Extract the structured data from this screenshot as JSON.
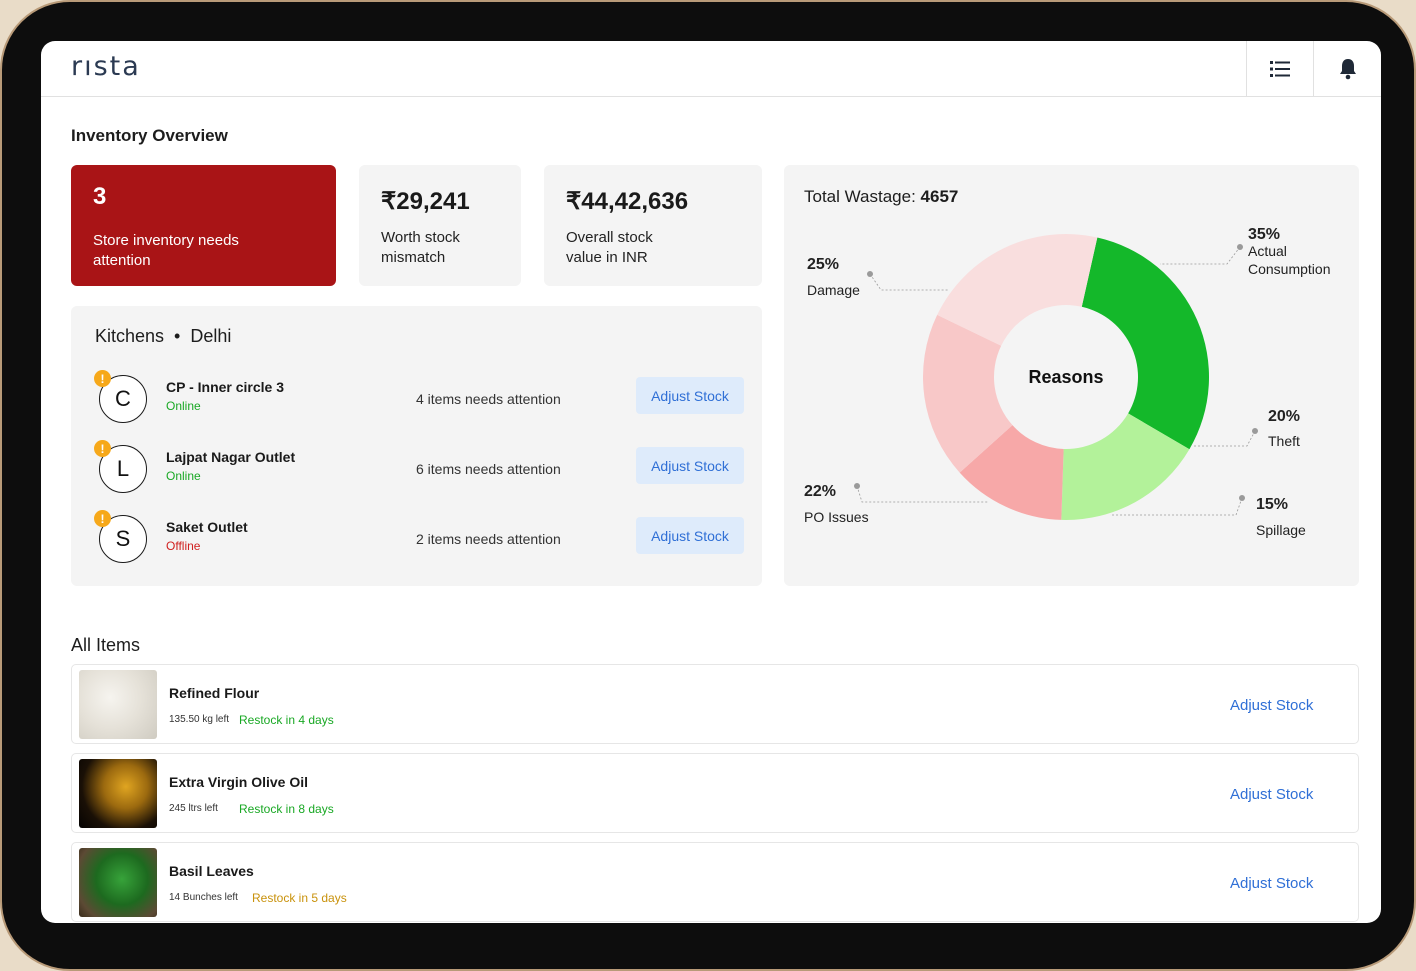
{
  "app": {
    "logo": "rısta"
  },
  "header": {
    "menu_icon": "list-icon",
    "bell_icon": "bell-icon"
  },
  "overview": {
    "title": "Inventory Overview",
    "alert_card": {
      "value": "3",
      "label": "Store inventory needs attention"
    },
    "mismatch_card": {
      "value": "₹29,241",
      "label": "Worth stock mismatch"
    },
    "stock_card": {
      "value": "₹44,42,636",
      "label": "Overall stock value in INR"
    }
  },
  "kitchens": {
    "title": "Kitchens",
    "city": "Delhi",
    "rows": [
      {
        "initial": "C",
        "name": "CP - Inner circle 3",
        "status": "Online",
        "attention": "4 items needs attention",
        "button": "Adjust Stock"
      },
      {
        "initial": "L",
        "name": "Lajpat Nagar Outlet",
        "status": "Online",
        "attention": "6 items needs attention",
        "button": "Adjust Stock"
      },
      {
        "initial": "S",
        "name": "Saket Outlet",
        "status": "Offline",
        "attention": "2 items needs attention",
        "button": "Adjust Stock"
      }
    ]
  },
  "wastage": {
    "title_label": "Total Wastage:",
    "total": "4657",
    "center_label": "Reasons"
  },
  "chart_data": {
    "type": "pie",
    "title": "Total Wastage: 4657",
    "center_label": "Reasons",
    "slices": [
      {
        "label": "Actual Consumption",
        "value": 35,
        "display": "35%",
        "color": "#14b82a"
      },
      {
        "label": "Theft",
        "value": 20,
        "display": "20%",
        "color": "#b3f29a"
      },
      {
        "label": "Spillage",
        "value": 15,
        "display": "15%",
        "color": "#f7a8a8"
      },
      {
        "label": "PO Issues",
        "value": 22,
        "display": "22%",
        "color": "#f8c8c8"
      },
      {
        "label": "Damage",
        "value": 25,
        "display": "25%",
        "color": "#f9dede"
      }
    ]
  },
  "items": {
    "title": "All Items",
    "rows": [
      {
        "name": "Refined Flour",
        "left": "135.50 kg left",
        "restock": "Restock in 4 days",
        "button": "Adjust Stock"
      },
      {
        "name": "Extra Virgin Olive Oil",
        "left": "245 ltrs left",
        "restock": "Restock in 8 days",
        "button": "Adjust Stock"
      },
      {
        "name": "Basil Leaves",
        "left": "14 Bunches left",
        "restock": "Restock in 5 days",
        "button": "Adjust Stock"
      }
    ]
  }
}
